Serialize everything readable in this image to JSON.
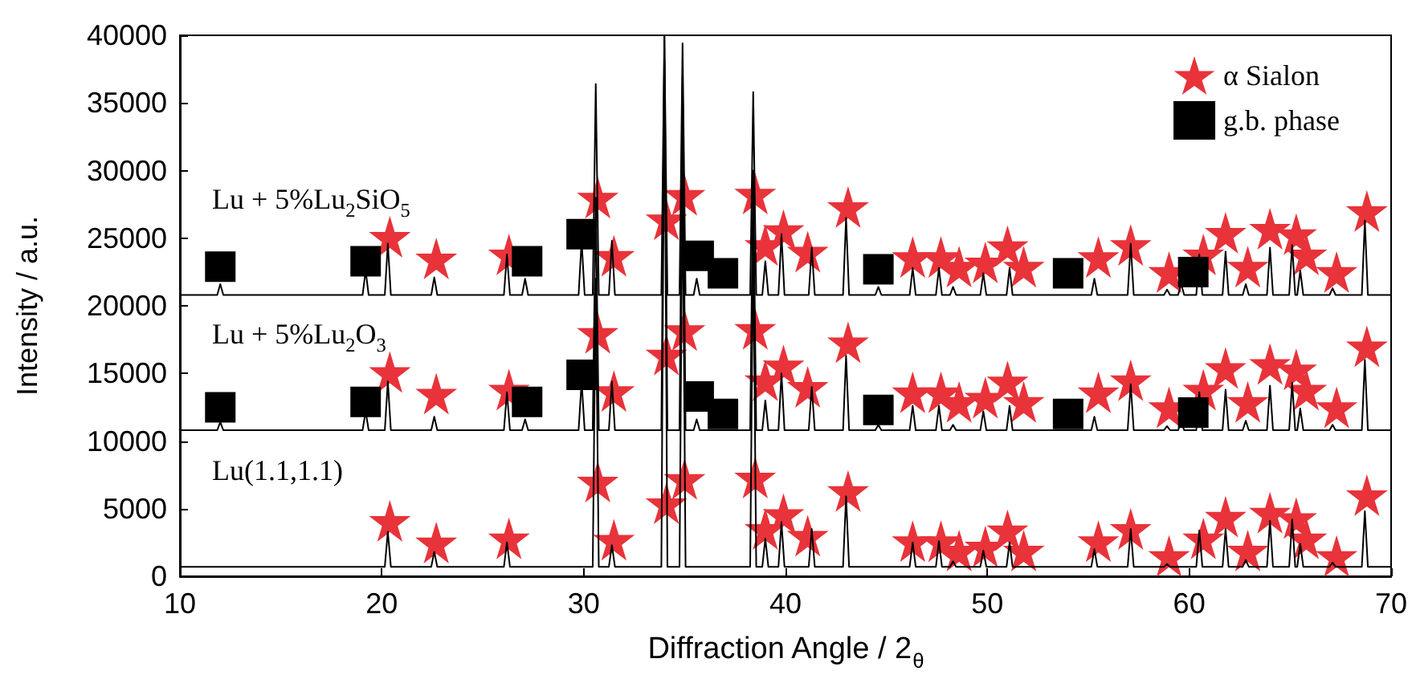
{
  "chart_data": {
    "type": "line",
    "xlabel": "Diffraction Angle / 2$_{θ}$",
    "ylabel": "Intensity / a.u.",
    "xlim": [
      10,
      70
    ],
    "xticks": [
      10,
      20,
      30,
      40,
      50,
      60,
      70
    ],
    "ylim": [
      0,
      40000
    ],
    "yticks": [
      0,
      5000,
      10000,
      15000,
      20000,
      25000,
      30000,
      35000,
      40000
    ],
    "grid": false,
    "legend": "top right",
    "x": [
      10,
      11.85,
      12,
      12.15,
      19.05,
      19.2,
      19.35,
      20.15,
      20.3,
      20.45,
      22.45,
      22.6,
      22.75,
      26.05,
      26.2,
      26.35,
      26.95,
      27.1,
      27.25,
      29.75,
      29.9,
      30.05,
      30.45,
      30.6,
      30.75,
      31.25,
      31.4,
      31.55,
      33.85,
      34,
      34.15,
      34.75,
      34.9,
      35.05,
      35.45,
      35.6,
      35.75,
      38.25,
      38.4,
      38.55,
      38.85,
      39,
      39.15,
      39.65,
      39.8,
      39.95,
      41.15,
      41.3,
      41.45,
      42.85,
      43,
      43.15,
      44.45,
      44.6,
      44.75,
      46.15,
      46.3,
      46.45,
      47.45,
      47.6,
      47.75,
      48.15,
      48.3,
      48.45,
      49.65,
      49.8,
      49.95,
      50.95,
      51.1,
      51.25,
      55.15,
      55.3,
      55.45,
      56.95,
      57.1,
      57.25,
      58.75,
      58.9,
      59.05,
      59.45,
      59.6,
      59.75,
      60.35,
      60.5,
      60.65,
      61.65,
      61.8,
      61.95,
      62.65,
      62.8,
      62.95,
      63.85,
      64,
      64.15,
      64.95,
      65.1,
      65.25,
      65.35,
      65.5,
      65.65,
      66.95,
      67.1,
      67.25,
      68.55,
      68.7,
      68.85,
      70
    ],
    "series": [
      {
        "color": "#000000",
        "marker": "none",
        "line_style": "solid",
        "values": [
          20800,
          20800,
          21600,
          20800,
          20800,
          22600,
          20800,
          20800,
          24600,
          20800,
          20800,
          22100,
          20800,
          20800,
          23800,
          20800,
          20800,
          22000,
          20800,
          20800,
          24800,
          20800,
          20800,
          36400,
          20800,
          20800,
          24800,
          20800,
          20800,
          40000,
          20800,
          20800,
          39400,
          20800,
          20800,
          22000,
          20800,
          20800,
          35800,
          20800,
          20800,
          23300,
          20800,
          20800,
          25300,
          20800,
          20800,
          24300,
          20800,
          20800,
          26500,
          20800,
          20800,
          21400,
          20800,
          20800,
          22800,
          20800,
          20800,
          22800,
          20800,
          20800,
          21400,
          20800,
          20800,
          22400,
          20800,
          20800,
          22800,
          20800,
          20800,
          22000,
          20800,
          20800,
          24600,
          20800,
          20800,
          21200,
          20800,
          20800,
          21600,
          20800,
          20800,
          23800,
          20800,
          20800,
          24000,
          20800,
          20800,
          21600,
          20800,
          20800,
          24300,
          20800,
          20800,
          24500,
          20800,
          20800,
          22600,
          20800,
          20800,
          21300,
          20800,
          20800,
          26300,
          20800,
          20800
        ]
      },
      {
        "color": "#000000",
        "marker": "none",
        "line_style": "solid",
        "values": [
          10800,
          10800,
          11400,
          10800,
          10800,
          12200,
          10800,
          10800,
          14400,
          10800,
          10800,
          11800,
          10800,
          10800,
          13600,
          10800,
          10800,
          11600,
          10800,
          10800,
          14400,
          10800,
          10800,
          28000,
          10800,
          10800,
          14400,
          10800,
          10800,
          40000,
          10800,
          10800,
          37000,
          10800,
          10800,
          11600,
          10800,
          10800,
          30000,
          10800,
          10800,
          13000,
          10800,
          10800,
          15000,
          10800,
          10800,
          14000,
          10800,
          10800,
          16300,
          10800,
          10800,
          11200,
          10800,
          10800,
          12600,
          10800,
          10800,
          12600,
          10800,
          10800,
          11200,
          10800,
          10800,
          12200,
          10800,
          10800,
          12600,
          10800,
          10800,
          11800,
          10800,
          10800,
          14200,
          10800,
          10800,
          11100,
          10800,
          10800,
          11400,
          10800,
          10800,
          13600,
          10800,
          10800,
          13800,
          10800,
          10800,
          11500,
          10800,
          10800,
          14100,
          10800,
          10800,
          14300,
          10800,
          10800,
          12400,
          10800,
          10800,
          11200,
          10800,
          10800,
          16000,
          10800,
          10800
        ]
      },
      {
        "color": "#000000",
        "marker": "none",
        "line_style": "solid",
        "values": [
          700,
          700,
          700,
          700,
          700,
          700,
          700,
          700,
          3300,
          700,
          700,
          1800,
          700,
          700,
          2500,
          700,
          700,
          700,
          700,
          700,
          700,
          700,
          700,
          22000,
          700,
          700,
          2300,
          700,
          700,
          38000,
          700,
          700,
          30000,
          700,
          700,
          700,
          700,
          700,
          25000,
          700,
          700,
          2800,
          700,
          700,
          4000,
          700,
          700,
          3500,
          700,
          700,
          5900,
          700,
          700,
          700,
          700,
          700,
          2500,
          700,
          700,
          2600,
          700,
          700,
          1100,
          700,
          700,
          1900,
          700,
          700,
          2500,
          700,
          700,
          2000,
          700,
          700,
          3500,
          700,
          700,
          900,
          700,
          700,
          700,
          700,
          700,
          3400,
          700,
          700,
          3500,
          700,
          700,
          1200,
          700,
          700,
          4100,
          700,
          700,
          4200,
          700,
          700,
          2400,
          700,
          700,
          1000,
          700,
          700,
          4800,
          700,
          700
        ]
      },
      {
        "type": "scatter",
        "name": "α Sialon",
        "color": "#e8333a",
        "marker": "star",
        "x": [
          20.4,
          22.7,
          26.3,
          30.7,
          31.5,
          34.1,
          35.0,
          38.5,
          39.0,
          39.9,
          41.1,
          43.1,
          46.3,
          47.7,
          48.6,
          49.9,
          51.0,
          51.8,
          55.5,
          57.1,
          59.0,
          60.7,
          61.8,
          62.9,
          64.0,
          65.3,
          65.8,
          67.3,
          68.8,
          20.4,
          22.7,
          26.3,
          30.7,
          31.5,
          34.1,
          35.0,
          38.5,
          39.0,
          39.9,
          41.1,
          43.1,
          46.3,
          47.7,
          48.6,
          49.9,
          51.0,
          51.8,
          55.5,
          57.1,
          59.0,
          60.7,
          61.8,
          62.9,
          64.0,
          65.3,
          65.8,
          67.3,
          68.8,
          20.4,
          22.7,
          26.3,
          30.7,
          31.5,
          34.1,
          35.0,
          38.5,
          39.0,
          39.9,
          41.1,
          43.1,
          46.3,
          47.7,
          48.6,
          49.9,
          51.0,
          51.8,
          55.5,
          57.1,
          59.0,
          60.7,
          61.8,
          62.9,
          64.0,
          65.3,
          65.8,
          67.3,
          68.8
        ],
        "values": [
          25100,
          23500,
          23800,
          28000,
          23700,
          26400,
          28200,
          28300,
          24500,
          25600,
          24000,
          27300,
          23600,
          23600,
          22900,
          23200,
          24400,
          22900,
          23600,
          24500,
          22500,
          23800,
          25400,
          22900,
          25700,
          25300,
          23800,
          22500,
          27000,
          15100,
          13500,
          13800,
          18000,
          13700,
          16400,
          18200,
          18300,
          14500,
          15600,
          14000,
          17300,
          13600,
          13600,
          12900,
          13200,
          14400,
          12900,
          13600,
          14500,
          12500,
          13800,
          15400,
          12900,
          15700,
          15300,
          13800,
          12500,
          17000,
          4100,
          2500,
          2800,
          7000,
          2700,
          5400,
          7200,
          7300,
          3500,
          4600,
          3000,
          6300,
          2600,
          2600,
          1900,
          2200,
          3400,
          1900,
          2600,
          3500,
          1500,
          2800,
          4400,
          1900,
          4700,
          4300,
          2800,
          1500,
          6000
        ]
      },
      {
        "type": "scatter",
        "name": "g.b. phase",
        "color": "#000000",
        "marker": "square",
        "x": [
          12.0,
          19.2,
          27.2,
          29.9,
          35.7,
          36.9,
          44.6,
          54.0,
          60.2,
          12.0,
          19.2,
          27.2,
          29.9,
          35.7,
          36.9,
          44.6,
          54.0,
          60.2
        ],
        "values": [
          22900,
          23300,
          23300,
          25300,
          23700,
          22400,
          22700,
          22400,
          22500,
          12500,
          12900,
          12900,
          14900,
          13300,
          12000,
          12300,
          12000,
          12100
        ]
      }
    ],
    "annotations": [
      "Lu + 5%Lu$_{2}$SiO$_{5}$",
      "Lu + 5%Lu$_{2}$O$_{3}$",
      "Lu(1.1,1.1)"
    ]
  }
}
